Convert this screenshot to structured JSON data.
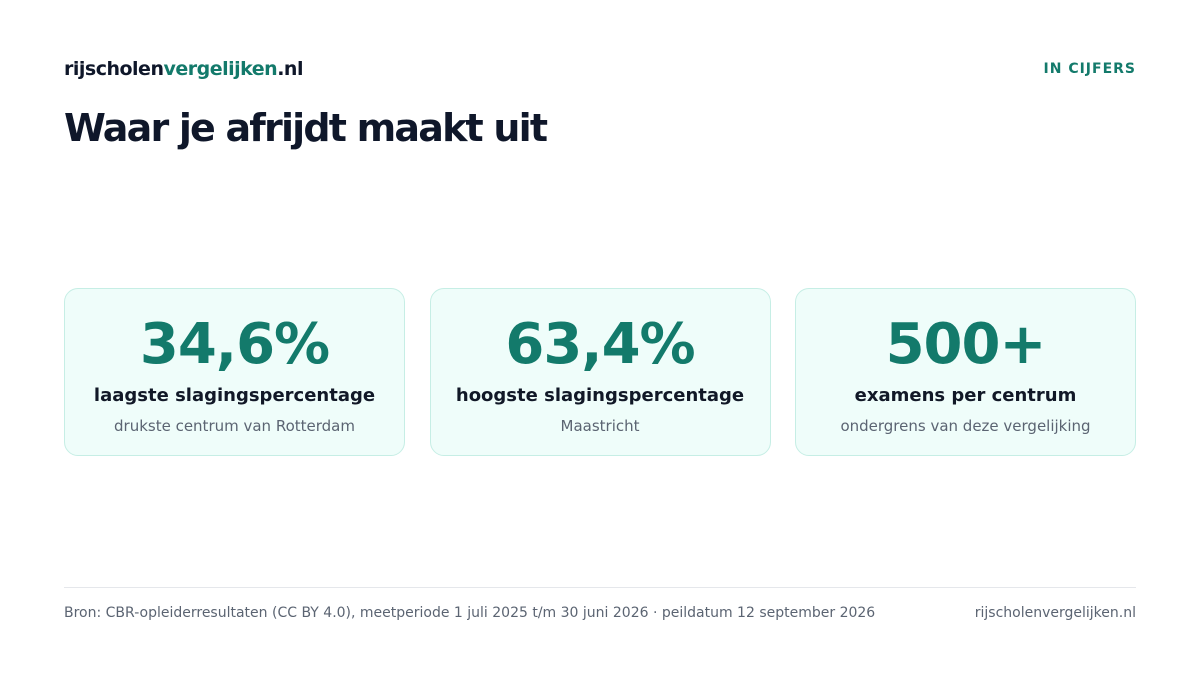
{
  "header": {
    "brand_prefix": "rijscholen",
    "brand_accent": "vergelijken",
    "brand_suffix": ".nl",
    "tag": "IN CIJFERS"
  },
  "title": "Waar je afrijdt maakt uit",
  "cards": [
    {
      "value": "34,6%",
      "label": "laagste slagingspercentage",
      "sub": "drukste centrum van Rotterdam"
    },
    {
      "value": "63,4%",
      "label": "hoogste slagingspercentage",
      "sub": "Maastricht"
    },
    {
      "value": "500+",
      "label": "examens per centrum",
      "sub": "ondergrens van deze vergelijking"
    }
  ],
  "footer": {
    "source": "Bron: CBR-opleiderresultaten (CC BY 4.0), meetperiode 1 juli 2025 t/m 30 juni 2026 · peildatum 12 september 2026",
    "site": "rijscholenvergelijken.nl"
  },
  "colors": {
    "accent": "#137a6b",
    "card_background": "#effdfa",
    "card_border": "#c6eee5",
    "text_dark": "#0f172a",
    "text_muted": "#5b6472"
  }
}
